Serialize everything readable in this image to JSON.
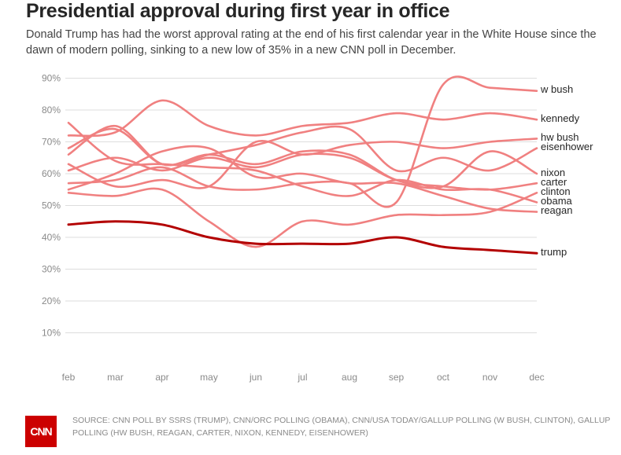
{
  "title": "Presidential approval during first year in office",
  "subtitle": "Donald Trump has had the worst approval rating at the end of his first calendar year in the White House since the dawn of modern polling, sinking to a new low of 35% in a new CNN poll in December.",
  "source": "SOURCE: CNN POLL BY SSRS (TRUMP), CNN/ORC POLLING (OBAMA), CNN/USA TODAY/GALLUP POLLING (W BUSH, CLINTON), GALLUP POLLING (HW BUSH, REAGAN, CARTER, NIXON, KENNEDY, EISENHOWER)",
  "logo": "CNN",
  "colors": {
    "highlight": "#b30000",
    "others": "#f08080",
    "grid": "#dddddd"
  },
  "chart_data": {
    "type": "line",
    "title": "Presidential approval during first year in office",
    "xlabel": "",
    "ylabel": "",
    "categories": [
      "feb",
      "mar",
      "apr",
      "may",
      "jun",
      "jul",
      "aug",
      "sep",
      "oct",
      "nov",
      "dec"
    ],
    "yticks": [
      "10%",
      "20%",
      "30%",
      "40%",
      "50%",
      "60%",
      "70%",
      "80%",
      "90%"
    ],
    "ylim": [
      0,
      90
    ],
    "grid": true,
    "legend": "direct labels at right end",
    "series": [
      {
        "name": "w bush",
        "values": [
          57,
          58,
          62,
          56,
          55,
          57,
          57,
          51,
          88,
          87,
          86
        ]
      },
      {
        "name": "kennedy",
        "values": [
          72,
          73,
          83,
          75,
          72,
          75,
          76,
          79,
          77,
          79,
          77
        ]
      },
      {
        "name": "hw bush",
        "values": [
          63,
          56,
          58,
          56,
          70,
          66,
          69,
          70,
          68,
          70,
          71
        ]
      },
      {
        "name": "eisenhower",
        "values": [
          68,
          74,
          63,
          66,
          69,
          73,
          74,
          61,
          65,
          61,
          68
        ]
      },
      {
        "name": "nixon",
        "values": [
          61,
          65,
          61,
          65,
          62,
          66,
          65,
          58,
          56,
          67,
          60
        ]
      },
      {
        "name": "carter",
        "values": [
          66,
          75,
          63,
          66,
          63,
          67,
          66,
          58,
          56,
          55,
          57
        ]
      },
      {
        "name": "clinton",
        "values": [
          54,
          53,
          55,
          45,
          37,
          45,
          44,
          47,
          47,
          48,
          54
        ]
      },
      {
        "name": "obama",
        "values": [
          76,
          64,
          63,
          62,
          61,
          56,
          53,
          58,
          55,
          55,
          51
        ]
      },
      {
        "name": "reagan",
        "values": [
          55,
          60,
          67,
          68,
          59,
          60,
          57,
          57,
          53,
          49,
          48
        ]
      },
      {
        "name": "trump",
        "values": [
          44,
          45,
          44,
          40,
          38,
          38,
          38,
          40,
          37,
          36,
          35
        ]
      }
    ]
  }
}
